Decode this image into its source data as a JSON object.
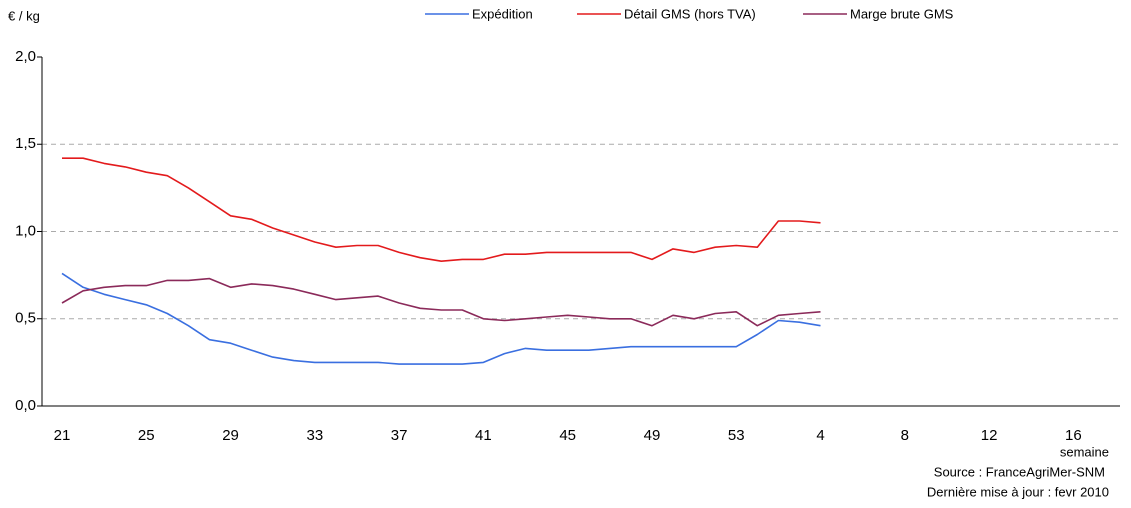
{
  "chart_data": {
    "type": "line",
    "y_label": "€ / kg",
    "x_label": "semaine",
    "source": "Source : FranceAgriMer-SNM",
    "updated": "Dernière mise à jour :  fevr 2010",
    "categories": [
      "21",
      null,
      null,
      null,
      "25",
      null,
      null,
      null,
      "29",
      null,
      null,
      null,
      "33",
      null,
      null,
      null,
      "37",
      null,
      null,
      null,
      "41",
      null,
      null,
      null,
      "45",
      null,
      null,
      null,
      "49",
      null,
      null,
      null,
      "53",
      null,
      null,
      null,
      "4",
      null,
      null,
      null,
      "8",
      null,
      null,
      null,
      "12",
      null,
      null,
      null,
      "16",
      null,
      null
    ],
    "series": [
      {
        "name": "Expédition",
        "color": "#3a6fe0",
        "values": [
          0.76,
          0.68,
          0.64,
          0.61,
          0.58,
          0.53,
          0.46,
          0.38,
          0.36,
          0.32,
          0.28,
          0.26,
          0.25,
          0.25,
          0.25,
          0.25,
          0.24,
          0.24,
          0.24,
          0.24,
          0.25,
          0.3,
          0.33,
          0.32,
          0.32,
          0.32,
          0.33,
          0.34,
          0.34,
          0.34,
          0.34,
          0.34,
          0.34,
          0.41,
          0.49,
          0.48,
          0.46,
          null,
          null,
          null,
          null,
          null,
          null,
          null,
          null,
          null,
          null,
          null,
          null,
          null,
          null
        ]
      },
      {
        "name": "Détail GMS (hors TVA)",
        "color": "#e31a1c",
        "values": [
          1.42,
          1.42,
          1.39,
          1.37,
          1.34,
          1.32,
          1.25,
          1.17,
          1.09,
          1.07,
          1.02,
          0.98,
          0.94,
          0.91,
          0.92,
          0.92,
          0.88,
          0.85,
          0.83,
          0.84,
          0.84,
          0.87,
          0.87,
          0.88,
          0.88,
          0.88,
          0.88,
          0.88,
          0.84,
          0.9,
          0.88,
          0.91,
          0.92,
          0.91,
          1.06,
          1.06,
          1.05,
          null,
          null,
          null,
          null,
          null,
          null,
          null,
          null,
          null,
          null,
          null,
          null,
          null,
          null
        ]
      },
      {
        "name": "Marge brute GMS",
        "color": "#8b2a5a",
        "values": [
          0.59,
          0.66,
          0.68,
          0.69,
          0.69,
          0.72,
          0.72,
          0.73,
          0.68,
          0.7,
          0.69,
          0.67,
          0.64,
          0.61,
          0.62,
          0.63,
          0.59,
          0.56,
          0.55,
          0.55,
          0.5,
          0.49,
          0.5,
          0.51,
          0.52,
          0.51,
          0.5,
          0.5,
          0.46,
          0.52,
          0.5,
          0.53,
          0.54,
          0.46,
          0.52,
          0.53,
          0.54,
          null,
          null,
          null,
          null,
          null,
          null,
          null,
          null,
          null,
          null,
          null,
          null,
          null,
          null
        ]
      }
    ],
    "ylim": [
      0,
      2
    ],
    "yticks": [
      {
        "value": 0,
        "label": "0,0"
      },
      {
        "value": 0.5,
        "label": "0,5"
      },
      {
        "value": 1,
        "label": "1,0"
      },
      {
        "value": 1.5,
        "label": "1,5"
      },
      {
        "value": 2,
        "label": "2,0"
      }
    ],
    "grid": true
  }
}
